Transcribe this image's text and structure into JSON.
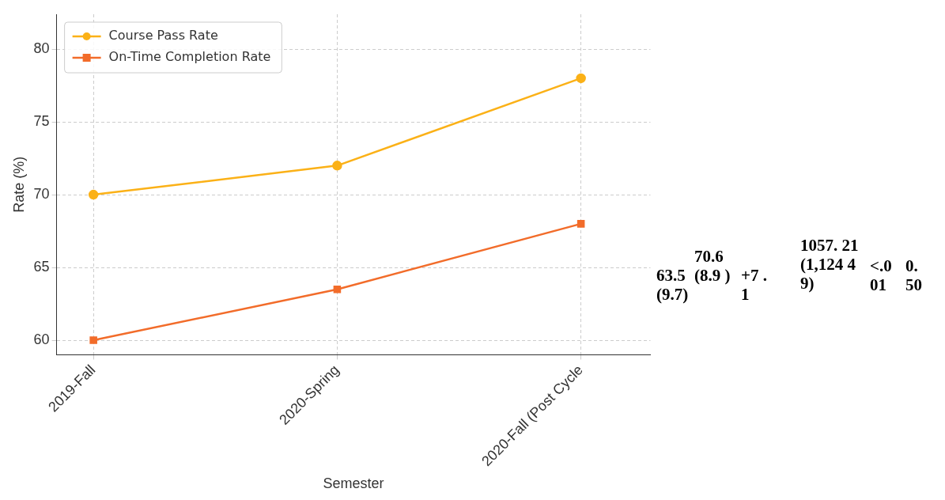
{
  "chart_data": {
    "type": "line",
    "xlabel": "Semester",
    "ylabel": "Rate (%)",
    "categories": [
      "2019-Fall",
      "2020-Spring",
      "2020-Fall (Post Cycle"
    ],
    "series": [
      {
        "name": "Course Pass Rate",
        "color": "#fbb117",
        "marker": "circle",
        "values": [
          70,
          72,
          78
        ]
      },
      {
        "name": "On-Time Completion Rate",
        "color": "#f26c2a",
        "marker": "square",
        "values": [
          60,
          63.5,
          68
        ]
      }
    ],
    "ylim": [
      59,
      82.4
    ],
    "yticks": [
      60,
      65,
      70,
      75,
      80
    ],
    "grid": true,
    "legend": "top left",
    "line_style": "solid",
    "annotations": [
      "63.5 (9.7)",
      "70.6 (8.9 )",
      "+7 .1",
      "1057. 21 (1,124 49)",
      "<.0 01",
      "0. 50"
    ]
  }
}
